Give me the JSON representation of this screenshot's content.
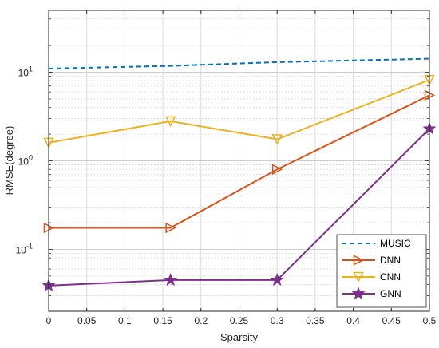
{
  "chart_data": {
    "type": "line",
    "xlabel": "Sparsity",
    "ylabel": "RMSE(degree)",
    "xlim": [
      0,
      0.5
    ],
    "ylim": [
      0.02,
      50
    ],
    "yscale": "log",
    "grid": true,
    "legend_position": "bottom-right",
    "x_ticks": [
      "0",
      "0.05",
      "0.1",
      "0.15",
      "0.2",
      "0.25",
      "0.3",
      "0.35",
      "0.4",
      "0.45",
      "0.5"
    ],
    "y_ticks": [
      {
        "value": 0.1,
        "base": "10",
        "exp": "-1"
      },
      {
        "value": 1,
        "base": "10",
        "exp": "0"
      },
      {
        "value": 10,
        "base": "10",
        "exp": "1"
      }
    ],
    "series": [
      {
        "name": "MUSIC",
        "color": "#0072BD",
        "marker": "none",
        "dashed": true,
        "x": [
          0,
          0.16,
          0.3,
          0.5
        ],
        "values": [
          11.0,
          11.8,
          13.0,
          14.2
        ]
      },
      {
        "name": "DNN",
        "color": "#D95319",
        "marker": "triangle-right",
        "dashed": false,
        "x": [
          0,
          0.16,
          0.3,
          0.5
        ],
        "values": [
          0.175,
          0.175,
          0.8,
          5.5
        ]
      },
      {
        "name": "CNN",
        "color": "#EDB120",
        "marker": "triangle-down",
        "dashed": false,
        "x": [
          0,
          0.16,
          0.3,
          0.5
        ],
        "values": [
          1.6,
          2.8,
          1.75,
          8.2
        ]
      },
      {
        "name": "GNN",
        "color": "#7E2F8E",
        "marker": "star",
        "dashed": false,
        "x": [
          0,
          0.16,
          0.3,
          0.5
        ],
        "values": [
          0.039,
          0.045,
          0.045,
          2.3
        ]
      }
    ]
  }
}
